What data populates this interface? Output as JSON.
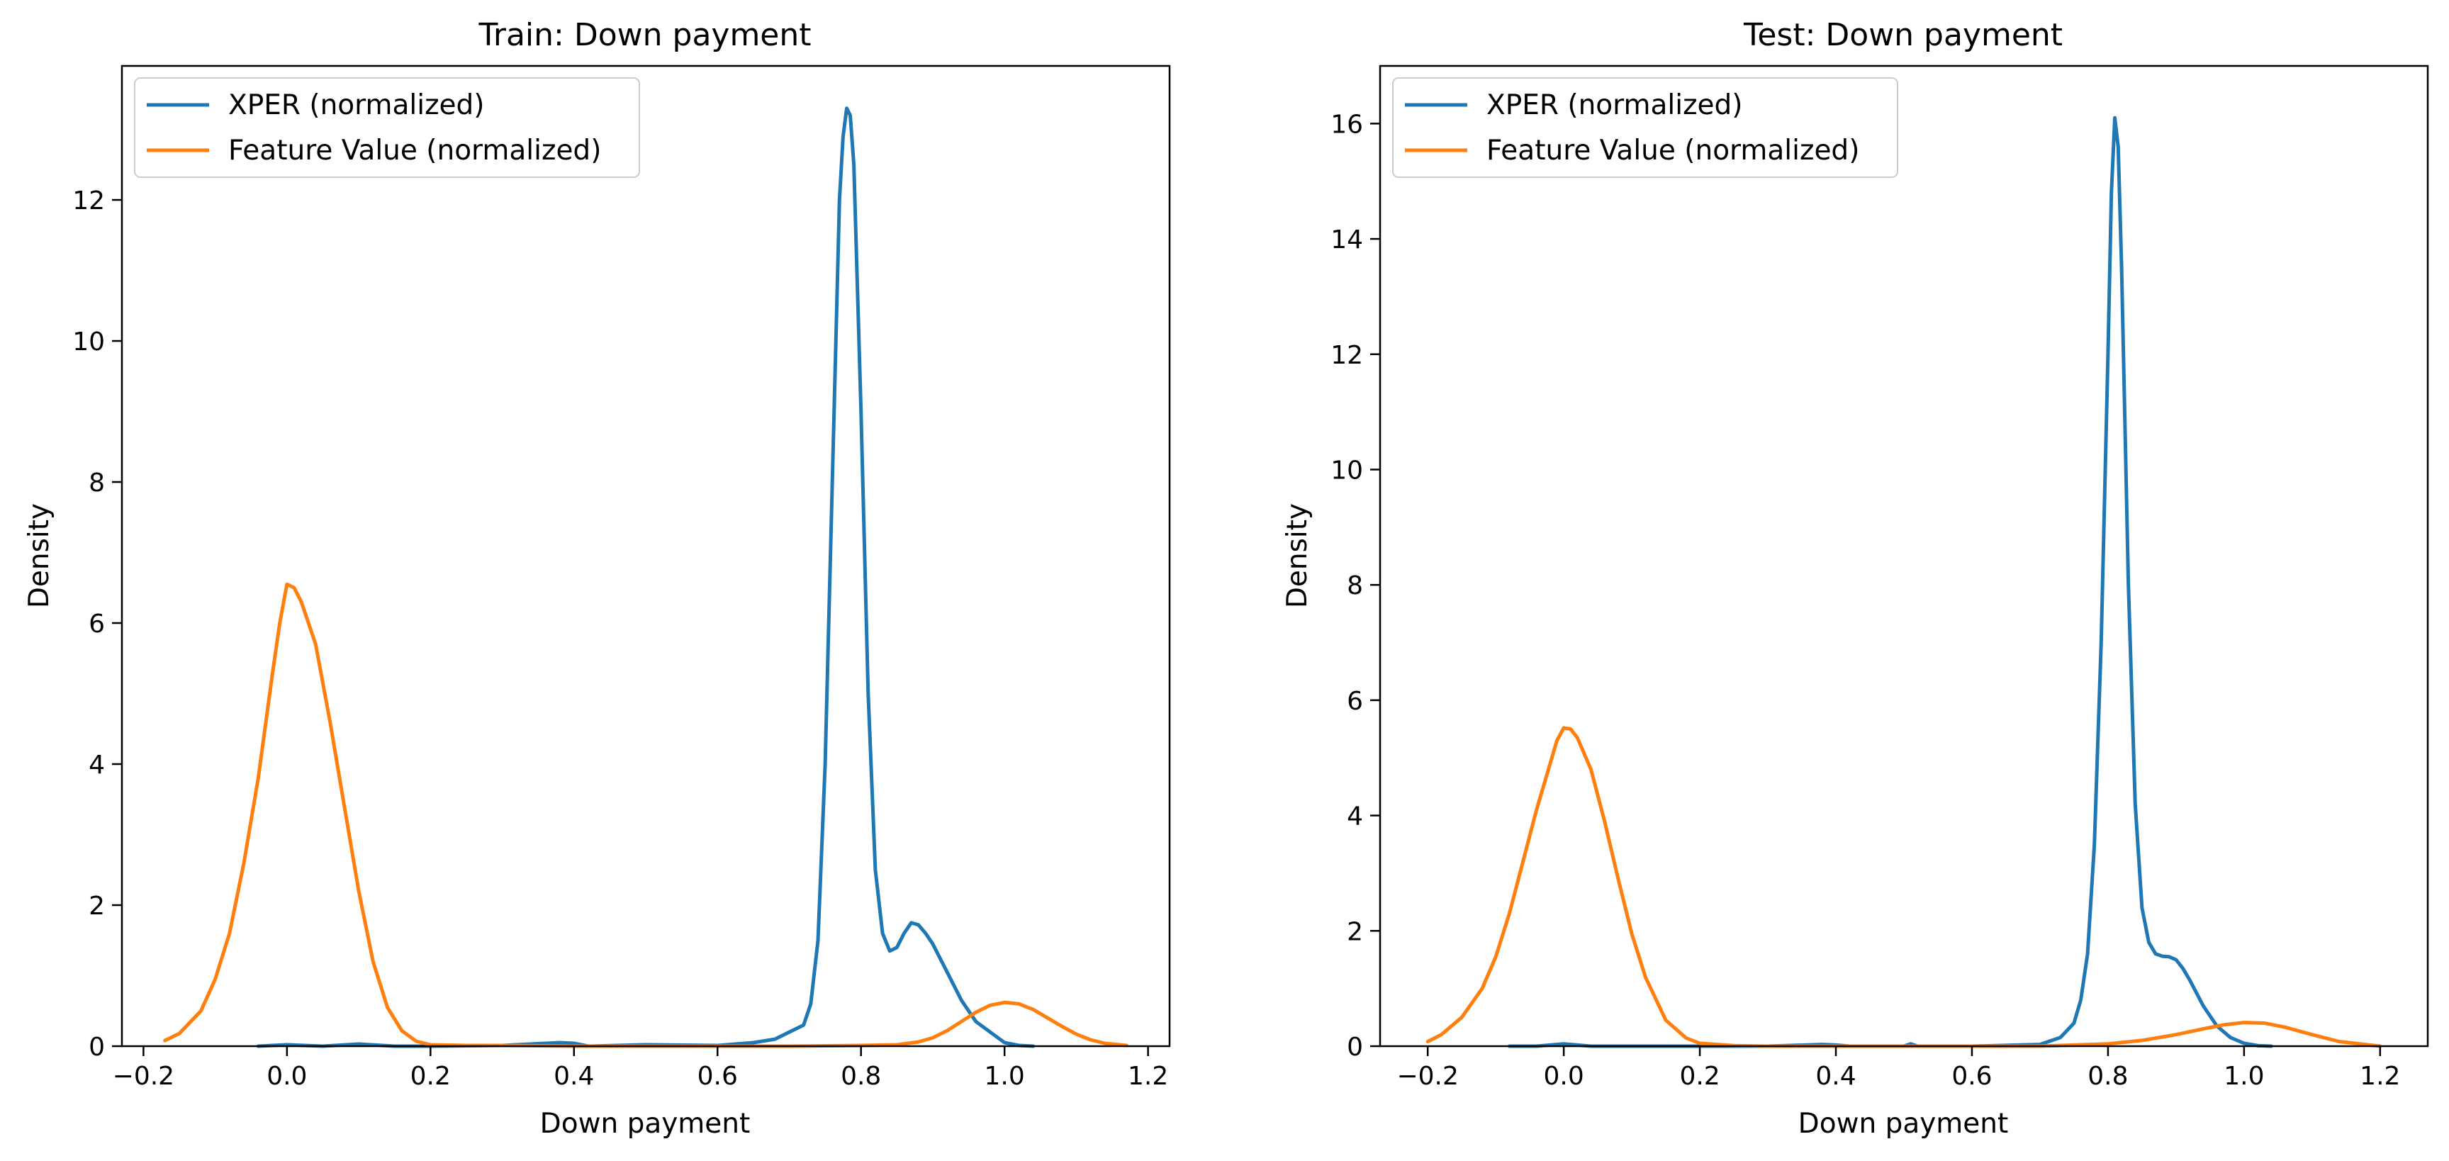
{
  "chart_data": [
    {
      "type": "line",
      "title": "Train: Down payment",
      "xlabel": "Down payment",
      "ylabel": "Density",
      "xlim": [
        -0.23,
        1.23
      ],
      "ylim": [
        0,
        13.9
      ],
      "xticks": [
        -0.2,
        0.0,
        0.2,
        0.4,
        0.6,
        0.8,
        1.0,
        1.2
      ],
      "xtick_labels": [
        "−0.2",
        "0.0",
        "0.2",
        "0.4",
        "0.6",
        "0.8",
        "1.0",
        "1.2"
      ],
      "yticks": [
        0,
        2,
        4,
        6,
        8,
        10,
        12
      ],
      "ytick_labels": [
        "0",
        "2",
        "4",
        "6",
        "8",
        "10",
        "12"
      ],
      "grid": false,
      "legend_position": "top-left",
      "series": [
        {
          "name": "XPER (normalized)",
          "color": "#1f77b4",
          "x": [
            -0.04,
            0.0,
            0.05,
            0.1,
            0.15,
            0.2,
            0.3,
            0.38,
            0.4,
            0.42,
            0.5,
            0.6,
            0.65,
            0.68,
            0.7,
            0.72,
            0.73,
            0.74,
            0.75,
            0.76,
            0.77,
            0.775,
            0.78,
            0.785,
            0.79,
            0.8,
            0.81,
            0.82,
            0.83,
            0.84,
            0.85,
            0.86,
            0.87,
            0.88,
            0.89,
            0.9,
            0.92,
            0.94,
            0.96,
            0.98,
            1.0,
            1.02,
            1.04
          ],
          "y": [
            0.0,
            0.02,
            0.0,
            0.03,
            0.0,
            0.0,
            0.01,
            0.05,
            0.04,
            0.0,
            0.02,
            0.01,
            0.05,
            0.1,
            0.2,
            0.3,
            0.6,
            1.5,
            4.0,
            8.0,
            12.0,
            12.9,
            13.3,
            13.2,
            12.5,
            9.0,
            5.0,
            2.5,
            1.6,
            1.35,
            1.4,
            1.6,
            1.75,
            1.72,
            1.6,
            1.45,
            1.05,
            0.65,
            0.35,
            0.2,
            0.05,
            0.01,
            0.0
          ]
        },
        {
          "name": "Feature Value (normalized)",
          "color": "#ff7f0e",
          "x": [
            -0.17,
            -0.15,
            -0.12,
            -0.1,
            -0.08,
            -0.06,
            -0.04,
            -0.02,
            -0.01,
            0.0,
            0.01,
            0.02,
            0.04,
            0.06,
            0.08,
            0.1,
            0.12,
            0.14,
            0.16,
            0.18,
            0.2,
            0.25,
            0.3,
            0.4,
            0.5,
            0.6,
            0.7,
            0.8,
            0.85,
            0.88,
            0.9,
            0.92,
            0.94,
            0.96,
            0.98,
            1.0,
            1.02,
            1.04,
            1.06,
            1.08,
            1.1,
            1.12,
            1.14,
            1.17
          ],
          "y": [
            0.08,
            0.18,
            0.5,
            0.95,
            1.6,
            2.6,
            3.8,
            5.3,
            6.0,
            6.55,
            6.5,
            6.3,
            5.7,
            4.6,
            3.4,
            2.2,
            1.2,
            0.55,
            0.22,
            0.07,
            0.02,
            0.01,
            0.01,
            0.0,
            0.0,
            0.0,
            0.0,
            0.01,
            0.02,
            0.06,
            0.12,
            0.22,
            0.35,
            0.48,
            0.58,
            0.62,
            0.6,
            0.52,
            0.4,
            0.28,
            0.17,
            0.09,
            0.04,
            0.01
          ]
        }
      ]
    },
    {
      "type": "line",
      "title": "Test: Down payment",
      "xlabel": "Down payment",
      "ylabel": "Density",
      "xlim": [
        -0.27,
        1.27
      ],
      "ylim": [
        0,
        17.0
      ],
      "xticks": [
        -0.2,
        0.0,
        0.2,
        0.4,
        0.6,
        0.8,
        1.0,
        1.2
      ],
      "xtick_labels": [
        "−0.2",
        "0.0",
        "0.2",
        "0.4",
        "0.6",
        "0.8",
        "1.0",
        "1.2"
      ],
      "yticks": [
        0,
        2,
        4,
        6,
        8,
        10,
        12,
        14,
        16
      ],
      "ytick_labels": [
        "0",
        "2",
        "4",
        "6",
        "8",
        "10",
        "12",
        "14",
        "16"
      ],
      "grid": false,
      "legend_position": "top-left",
      "series": [
        {
          "name": "XPER (normalized)",
          "color": "#1f77b4",
          "x": [
            -0.08,
            -0.04,
            0.0,
            0.04,
            0.1,
            0.2,
            0.3,
            0.38,
            0.4,
            0.42,
            0.5,
            0.51,
            0.52,
            0.6,
            0.7,
            0.73,
            0.75,
            0.76,
            0.77,
            0.78,
            0.79,
            0.8,
            0.805,
            0.81,
            0.815,
            0.82,
            0.83,
            0.84,
            0.85,
            0.86,
            0.87,
            0.88,
            0.89,
            0.9,
            0.91,
            0.92,
            0.94,
            0.96,
            0.98,
            1.0,
            1.02,
            1.04
          ],
          "y": [
            0.0,
            0.0,
            0.04,
            0.0,
            0.0,
            0.0,
            0.0,
            0.03,
            0.02,
            0.0,
            0.0,
            0.04,
            0.0,
            0.0,
            0.03,
            0.15,
            0.4,
            0.8,
            1.6,
            3.5,
            7.0,
            12.0,
            14.8,
            16.1,
            15.6,
            13.5,
            8.0,
            4.2,
            2.4,
            1.8,
            1.6,
            1.56,
            1.55,
            1.5,
            1.35,
            1.15,
            0.7,
            0.35,
            0.15,
            0.05,
            0.01,
            0.0
          ]
        },
        {
          "name": "Feature Value (normalized)",
          "color": "#ff7f0e",
          "x": [
            -0.2,
            -0.18,
            -0.15,
            -0.12,
            -0.1,
            -0.08,
            -0.06,
            -0.04,
            -0.02,
            -0.01,
            0.0,
            0.01,
            0.02,
            0.04,
            0.06,
            0.08,
            0.1,
            0.12,
            0.15,
            0.18,
            0.2,
            0.25,
            0.3,
            0.4,
            0.5,
            0.6,
            0.7,
            0.8,
            0.85,
            0.9,
            0.94,
            0.97,
            1.0,
            1.03,
            1.06,
            1.1,
            1.14,
            1.2
          ],
          "y": [
            0.08,
            0.2,
            0.5,
            1.0,
            1.55,
            2.3,
            3.2,
            4.1,
            4.9,
            5.3,
            5.52,
            5.5,
            5.35,
            4.8,
            3.9,
            2.9,
            1.95,
            1.2,
            0.45,
            0.14,
            0.05,
            0.01,
            0.0,
            0.0,
            0.0,
            0.0,
            0.0,
            0.04,
            0.1,
            0.2,
            0.3,
            0.37,
            0.41,
            0.4,
            0.33,
            0.2,
            0.08,
            0.0
          ]
        }
      ]
    }
  ]
}
